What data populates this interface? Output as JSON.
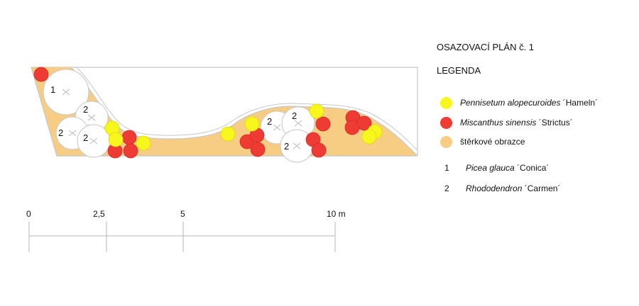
{
  "title": "OSAZOVACÍ PLÁN č. 1",
  "legend_heading": "LEGENDA",
  "colors": {
    "yellow_grass": "#f7f71e",
    "red_grass": "#ee3b33",
    "gravel": "#f7cd83",
    "shrub_fill": "#ffffff",
    "outline": "#bdbdbd"
  },
  "legend": {
    "pennisetum": {
      "italic": "Pennisetum alopecuroides",
      "cultivar": " ´Hameln´"
    },
    "miscanthus": {
      "italic": "Miscanthus sinensis",
      "cultivar": " ´Strictus´"
    },
    "gravel": {
      "label": "štěrkové obrazce"
    },
    "picea": {
      "num": "1",
      "italic": "Picea glauca",
      "cultivar": " ´Conica´"
    },
    "rhodo": {
      "num": "2",
      "italic": "Rhododendron",
      "cultivar": " ´Carmen´"
    }
  },
  "scale": {
    "labels": [
      "0",
      "2,5",
      "5",
      "10 m"
    ]
  },
  "plant_numbers": [
    "1",
    "2",
    "2",
    "2",
    "2",
    "2",
    "2"
  ]
}
